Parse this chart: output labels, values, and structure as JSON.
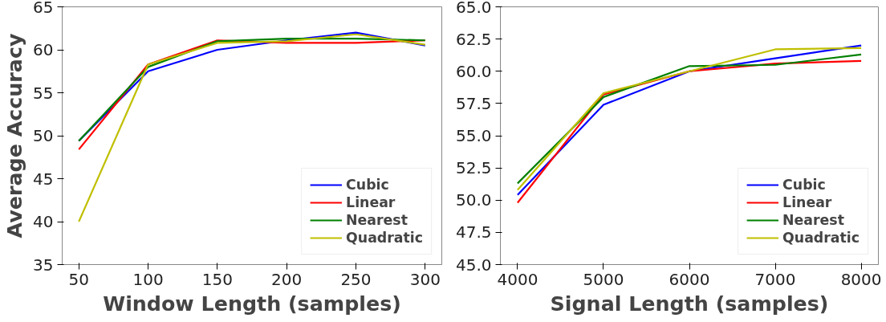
{
  "chart_data": [
    {
      "type": "line",
      "xlabel": "Window Length (samples)",
      "ylabel": "Average Accuracy",
      "x": [
        50,
        100,
        150,
        200,
        250,
        300
      ],
      "xlim": [
        38,
        312
      ],
      "xticks": [
        50,
        100,
        150,
        200,
        250,
        300
      ],
      "ylim": [
        35,
        65
      ],
      "yticks": [
        35,
        40,
        45,
        50,
        55,
        60,
        65
      ],
      "grid": false,
      "legend": "bottom right",
      "series": [
        {
          "name": "Cubic",
          "color": "#0000ff",
          "values": [
            49.4,
            57.5,
            60.0,
            61.1,
            62.0,
            60.5
          ]
        },
        {
          "name": "Linear",
          "color": "#ff0000",
          "values": [
            48.4,
            58.3,
            61.1,
            60.8,
            60.8,
            61.1
          ]
        },
        {
          "name": "Nearest",
          "color": "#008000",
          "values": [
            49.4,
            58.0,
            61.0,
            61.3,
            61.3,
            61.1
          ]
        },
        {
          "name": "Quadratic",
          "color": "#bfbf00",
          "values": [
            40.0,
            58.3,
            60.8,
            61.0,
            61.8,
            60.6
          ]
        }
      ]
    },
    {
      "type": "line",
      "xlabel": "Signal Length (samples)",
      "x": [
        4000,
        5000,
        6000,
        7000,
        8000
      ],
      "xlim": [
        3800,
        8200
      ],
      "xticks": [
        4000,
        5000,
        6000,
        7000,
        8000
      ],
      "ylim": [
        45,
        65
      ],
      "yticks": [
        {
          "value": 45,
          "label": "45.0"
        },
        {
          "value": 47.5,
          "label": "47.5"
        },
        {
          "value": 50,
          "label": "50.0"
        },
        {
          "value": 52.5,
          "label": "52.5"
        },
        {
          "value": 55,
          "label": "55.0"
        },
        {
          "value": 57.5,
          "label": "57.5"
        },
        {
          "value": 60,
          "label": "60.0"
        },
        {
          "value": 62.5,
          "label": "62.5"
        },
        {
          "value": 65,
          "label": "65.0"
        }
      ],
      "grid": false,
      "legend": "bottom right",
      "series": [
        {
          "name": "Cubic",
          "color": "#0000ff",
          "values": [
            50.4,
            57.4,
            60.0,
            61.0,
            62.0
          ]
        },
        {
          "name": "Linear",
          "color": "#ff0000",
          "values": [
            49.8,
            58.2,
            60.0,
            60.6,
            60.8
          ]
        },
        {
          "name": "Nearest",
          "color": "#008000",
          "values": [
            51.3,
            58.0,
            60.4,
            60.5,
            61.3
          ]
        },
        {
          "name": "Quadratic",
          "color": "#bfbf00",
          "values": [
            50.8,
            58.3,
            60.0,
            61.7,
            61.8
          ]
        }
      ]
    }
  ]
}
